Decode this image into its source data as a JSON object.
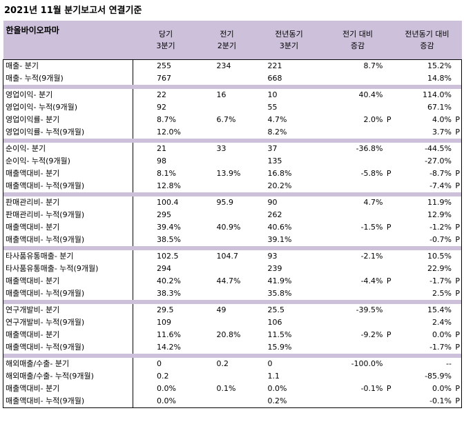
{
  "title": "2021년 11월 분기보고서 연결기준",
  "header": {
    "company": "한올바이오파마",
    "cols": [
      [
        "당기",
        "3분기"
      ],
      [
        "전기",
        "2분기"
      ],
      [
        "전년동기",
        "3분기"
      ],
      [
        "전기 대비",
        "증감"
      ],
      [
        "전년동기 대비",
        "증감"
      ]
    ]
  },
  "groups": [
    [
      [
        "매출- 분기",
        "255",
        "234",
        "221",
        "8.7%",
        "",
        "15.2%",
        ""
      ],
      [
        "매출- 누적(9개월)",
        "767",
        "",
        "668",
        "",
        "",
        "14.8%",
        ""
      ]
    ],
    [
      [
        "영업이익- 분기",
        "22",
        "16",
        "10",
        "40.4%",
        "",
        "114.0%",
        ""
      ],
      [
        "영업이익- 누적(9개월)",
        "92",
        "",
        "55",
        "",
        "",
        "67.1%",
        ""
      ],
      [
        "영업이익률- 분기",
        "8.7%",
        "6.7%",
        "4.7%",
        "2.0%",
        "P",
        "4.0%",
        "P"
      ],
      [
        "영업이익률- 누적(9개월)",
        "12.0%",
        "",
        "8.2%",
        "",
        "",
        "3.7%",
        "P"
      ]
    ],
    [
      [
        "순이익- 분기",
        "21",
        "33",
        "37",
        "-36.8%",
        "",
        "-44.5%",
        ""
      ],
      [
        "순이익- 누적(9개월)",
        "98",
        "",
        "135",
        "",
        "",
        "-27.0%",
        ""
      ],
      [
        "매출액대비- 분기",
        "8.1%",
        "13.9%",
        "16.8%",
        "-5.8%",
        "P",
        "-8.7%",
        "P"
      ],
      [
        "매출액대비- 누적(9개월)",
        "12.8%",
        "",
        "20.2%",
        "",
        "",
        "-7.4%",
        "P"
      ]
    ],
    [
      [
        "판매관리비- 분기",
        "100.4",
        "95.9",
        "90",
        "4.7%",
        "",
        "11.9%",
        ""
      ],
      [
        "판매관리비- 누적(9개월)",
        "295",
        "",
        "262",
        "",
        "",
        "12.9%",
        ""
      ],
      [
        "매출액대비- 분기",
        "39.4%",
        "40.9%",
        "40.6%",
        "-1.5%",
        "P",
        "-1.2%",
        "P"
      ],
      [
        "매출액대비- 누적(9개월)",
        "38.5%",
        "",
        "39.1%",
        "",
        "",
        "-0.7%",
        "P"
      ]
    ],
    [
      [
        "타사품유통매출- 분기",
        "102.5",
        "104.7",
        "93",
        "-2.1%",
        "",
        "10.5%",
        ""
      ],
      [
        "타사품유통매출- 누적(9개월)",
        "294",
        "",
        "239",
        "",
        "",
        "22.9%",
        ""
      ],
      [
        "매출액대비- 분기",
        "40.2%",
        "44.7%",
        "41.9%",
        "-4.4%",
        "P",
        "-1.7%",
        "P"
      ],
      [
        "매출액대비- 누적(9개월)",
        "38.3%",
        "",
        "35.8%",
        "",
        "",
        "2.5%",
        "P"
      ]
    ],
    [
      [
        "연구개발비- 분기",
        "29.5",
        "49",
        "25.5",
        "-39.5%",
        "",
        "15.4%",
        ""
      ],
      [
        "연구개발비- 누적(9개월)",
        "109",
        "",
        "106",
        "",
        "",
        "2.4%",
        ""
      ],
      [
        "매출액대비- 분기",
        "11.6%",
        "20.8%",
        "11.5%",
        "-9.2%",
        "P",
        "0.0%",
        "P"
      ],
      [
        "매출액대비- 누적(9개월)",
        "14.2%",
        "",
        "15.9%",
        "",
        "",
        "-1.7%",
        "P"
      ]
    ],
    [
      [
        "해외매출/수출- 분기",
        "0",
        "0.2",
        "0",
        "-100.0%",
        "",
        "--",
        ""
      ],
      [
        "해외매출/수출- 누적(9개월)",
        "0.2",
        "",
        "1.1",
        "",
        "",
        "-85.9%",
        ""
      ],
      [
        "매출액대비- 분기",
        "0.0%",
        "0.1%",
        "0.0%",
        "-0.1%",
        "P",
        "0.0%",
        "P"
      ],
      [
        "매출액대비- 누적(9개월)",
        "0.0%",
        "",
        "0.2%",
        "",
        "",
        "-0.1%",
        "P"
      ]
    ]
  ]
}
